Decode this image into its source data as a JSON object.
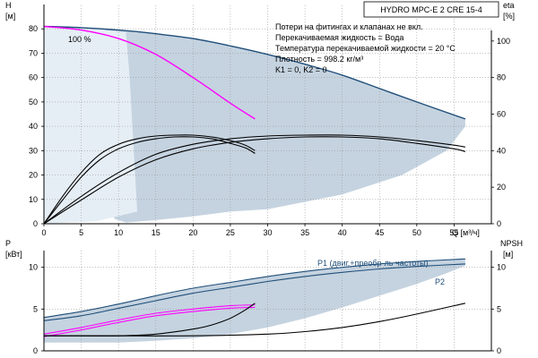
{
  "title": "HYDRO MPC-E 2 CRE 15-4",
  "notes": [
    "Потери на фитингах и клапанах не вкл.",
    "Перекачиваемая жидкость = Вода",
    "Температура перекачиваемой жидкости = 20 °C",
    "Плотность = 998.2 кг/м³",
    "K1 = 0, K2 = 0"
  ],
  "chart_data": [
    {
      "type": "line",
      "name": "performance",
      "xlabel": "Q [м³/ч]",
      "ylabel_left": [
        "H",
        "[м]"
      ],
      "ylabel_right": [
        "eta",
        "[%]"
      ],
      "xlim": [
        0,
        60
      ],
      "ylim_left": [
        0,
        90
      ],
      "ylim_right": [
        0,
        120
      ],
      "x_ticks": [
        0,
        5,
        10,
        15,
        20,
        25,
        30,
        35,
        40,
        45,
        50,
        55
      ],
      "y_left_ticks": [
        0,
        10,
        20,
        30,
        40,
        50,
        60,
        70,
        80
      ],
      "y_right_ticks": [
        0,
        20,
        40,
        60,
        80,
        100
      ],
      "speed_label": "100 %",
      "series": [
        {
          "role": "H-2pumps",
          "color": "#1f4e79",
          "axis": "left",
          "x": [
            0,
            5,
            10,
            15,
            20,
            25,
            30,
            35,
            40,
            45,
            50,
            56.5
          ],
          "y": [
            81,
            80.5,
            79.5,
            78,
            76,
            73,
            69.5,
            65.5,
            61,
            55.5,
            50,
            43
          ]
        },
        {
          "role": "H-1pump",
          "color": "#ff00ff",
          "axis": "left",
          "x": [
            0,
            5,
            10,
            15,
            20,
            25,
            28.3
          ],
          "y": [
            81,
            79.5,
            76,
            69.5,
            60,
            49.5,
            43
          ]
        },
        {
          "role": "eta-1pump-a",
          "color": "#000000",
          "axis": "right",
          "x": [
            0,
            2.5,
            5,
            7.5,
            10,
            12.5,
            15,
            17.5,
            20,
            22.5,
            25,
            27,
            28.3
          ],
          "y": [
            0,
            15,
            28,
            38,
            43.5,
            46.5,
            48,
            48.5,
            48.5,
            47.5,
            45.5,
            43,
            40
          ]
        },
        {
          "role": "eta-1pump-b",
          "color": "#000000",
          "axis": "right",
          "x": [
            0,
            2.5,
            5,
            7.5,
            10,
            12.5,
            15,
            17.5,
            20,
            22.5,
            25,
            27,
            28.3
          ],
          "y": [
            0,
            13,
            25.5,
            35,
            41,
            44.5,
            46.5,
            47.5,
            47.5,
            46.5,
            44,
            41.5,
            38.5
          ]
        },
        {
          "role": "eta-2pumps-a",
          "color": "#000000",
          "axis": "right",
          "x": [
            0,
            5,
            10,
            15,
            20,
            25,
            30,
            35,
            40,
            45,
            50,
            55,
            56.5
          ],
          "y": [
            0,
            15,
            28,
            38,
            43.5,
            46.5,
            48,
            48.5,
            48.5,
            47.5,
            45.5,
            43,
            42
          ]
        },
        {
          "role": "eta-2pumps-b",
          "color": "#000000",
          "axis": "right",
          "x": [
            0,
            5,
            10,
            15,
            20,
            25,
            30,
            35,
            40,
            45,
            50,
            55,
            56.5
          ],
          "y": [
            0,
            13,
            25.5,
            35,
            41,
            44.5,
            46.5,
            47.5,
            47.5,
            46.5,
            44,
            41,
            39.5
          ]
        }
      ],
      "fills": [
        {
          "role": "dark-region",
          "color": "#c5d3e0",
          "axis": "left",
          "x": [
            0,
            5,
            10,
            15,
            20,
            25,
            30,
            35,
            40,
            45,
            50,
            56.5,
            56.5,
            54,
            48,
            40,
            30,
            25,
            20,
            15,
            11,
            9.5,
            8.5,
            0
          ],
          "y": [
            81,
            80.5,
            79.5,
            78,
            76,
            73,
            69.5,
            65.5,
            61,
            55.5,
            50,
            43,
            40,
            30,
            20,
            12,
            6,
            5,
            3,
            1.5,
            0.5,
            2,
            6,
            0
          ]
        },
        {
          "role": "light-region",
          "color": "#e6eef5",
          "axis": "left",
          "x": [
            0,
            2,
            4,
            6,
            8,
            9.5,
            11,
            11.5,
            12.5,
            7,
            0
          ],
          "y": [
            81,
            81,
            80.5,
            80,
            79.5,
            79,
            78.5,
            60,
            5,
            1,
            0
          ]
        }
      ]
    },
    {
      "type": "line",
      "name": "power",
      "xlabel": "",
      "ylabel_left": [
        "P",
        "[кВт]"
      ],
      "ylabel_right": [
        "NPSH",
        "[м]"
      ],
      "xlim": [
        0,
        60
      ],
      "ylim_left": [
        0,
        12
      ],
      "ylim_right": [
        0,
        12
      ],
      "y_left_ticks": [
        0,
        5,
        10
      ],
      "y_right_ticks": [
        0,
        5,
        10
      ],
      "annotations": [
        "P1 (двиг.+преобр-ль частоты)",
        "P2"
      ],
      "series": [
        {
          "role": "P1-2pumps",
          "color": "#1f4e79",
          "axis": "left",
          "x": [
            0,
            5,
            10,
            15,
            20,
            25,
            30,
            35,
            40,
            45,
            50,
            56.5
          ],
          "y": [
            4,
            4.7,
            5.6,
            6.6,
            7.5,
            8.2,
            8.9,
            9.5,
            10,
            10.4,
            10.7,
            11
          ]
        },
        {
          "role": "P2-2pumps",
          "color": "#1f4e79",
          "axis": "left",
          "x": [
            0,
            5,
            10,
            15,
            20,
            25,
            30,
            35,
            40,
            45,
            50,
            56.5
          ],
          "y": [
            3.6,
            4.2,
            5.1,
            6,
            6.9,
            7.6,
            8.3,
            8.9,
            9.4,
            9.8,
            10.1,
            10.4
          ]
        },
        {
          "role": "P1-1pump",
          "color": "#ff00ff",
          "axis": "left",
          "x": [
            0,
            5,
            10,
            15,
            20,
            25,
            28.3
          ],
          "y": [
            2,
            2.8,
            3.7,
            4.5,
            5,
            5.4,
            5.5
          ]
        },
        {
          "role": "P2-1pump",
          "color": "#ff00ff",
          "axis": "left",
          "x": [
            0,
            5,
            10,
            15,
            20,
            25,
            28.3
          ],
          "y": [
            1.7,
            2.5,
            3.4,
            4.2,
            4.7,
            5.1,
            5.2
          ]
        },
        {
          "role": "NPSH-1pump",
          "color": "#000000",
          "axis": "right",
          "x": [
            0,
            5,
            10,
            15,
            20,
            22.5,
            25,
            27,
            28.3
          ],
          "y": [
            1.8,
            1.8,
            1.8,
            2,
            2.6,
            3.1,
            3.9,
            4.9,
            5.7
          ]
        },
        {
          "role": "NPSH-2pumps",
          "color": "#000000",
          "axis": "right",
          "x": [
            0,
            10,
            20,
            30,
            35,
            40,
            45,
            50,
            56.5
          ],
          "y": [
            1.8,
            1.8,
            1.8,
            2,
            2.3,
            2.8,
            3.5,
            4.4,
            5.7
          ]
        }
      ],
      "fills": [
        {
          "role": "power-region",
          "color": "#c5d3e0",
          "axis": "left",
          "x": [
            0,
            5,
            10,
            15,
            20,
            25,
            30,
            35,
            40,
            45,
            50,
            56.5,
            56.5,
            54,
            50,
            45,
            40,
            35,
            30,
            25,
            20,
            15,
            10,
            5,
            0
          ],
          "y": [
            4,
            4.7,
            5.6,
            6.6,
            7.5,
            8.2,
            8.9,
            9.5,
            10,
            10.4,
            10.7,
            11,
            10.2,
            9.3,
            8,
            6.6,
            5.2,
            3.9,
            2.8,
            2,
            1.5,
            1.2,
            1,
            1,
            1
          ]
        }
      ]
    }
  ]
}
